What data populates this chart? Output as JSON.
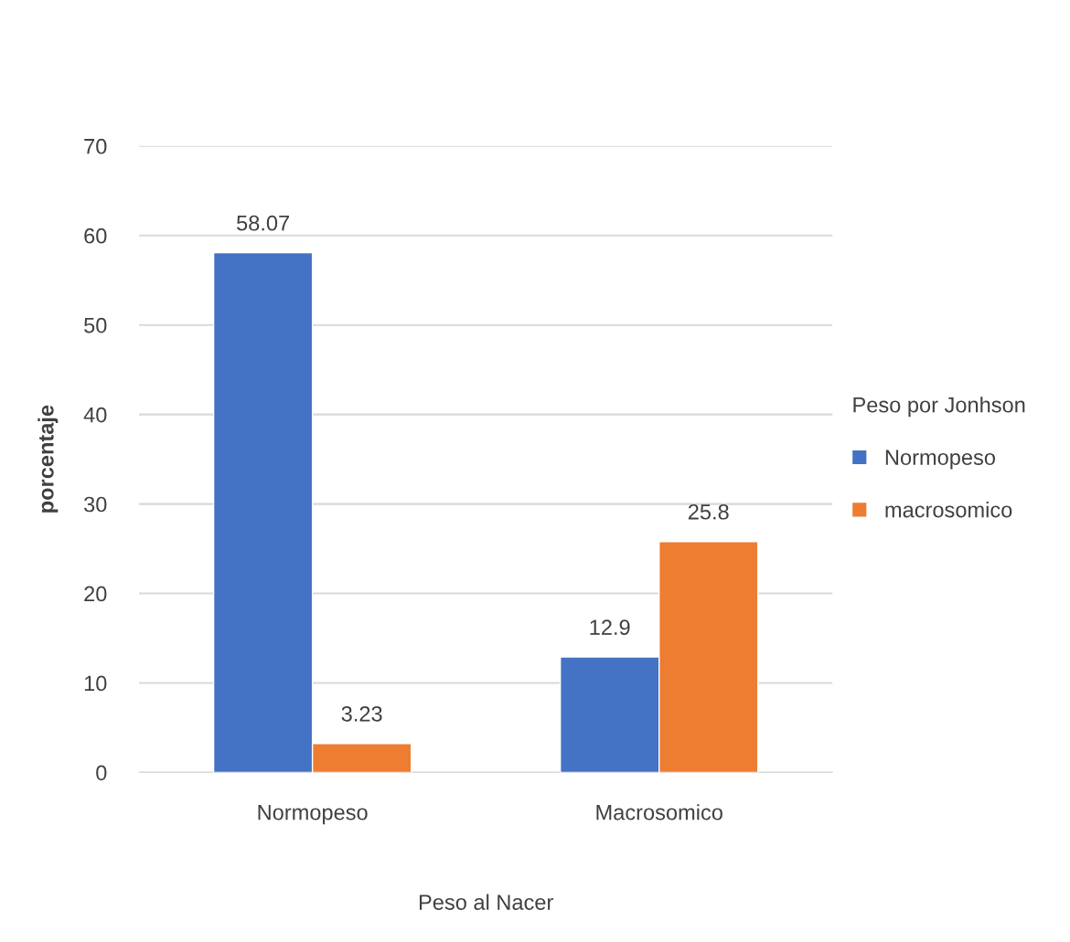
{
  "chart_data": {
    "type": "bar",
    "xlabel": "Peso al Nacer",
    "ylabel": "porcentaje",
    "legend_title": "Peso por Jonhson",
    "legend": "right",
    "categories": [
      "Normopeso",
      "Macrosomico"
    ],
    "series": [
      {
        "name": "Normopeso",
        "color": "#4472c4",
        "values": [
          58.07,
          12.9
        ]
      },
      {
        "name": "macrosomico",
        "color": "#ed7d31",
        "values": [
          3.23,
          25.8
        ]
      }
    ],
    "ylim": [
      0,
      70
    ],
    "yticks": [
      0,
      10,
      20,
      30,
      40,
      50,
      60,
      70
    ],
    "grid": "y",
    "data_labels": true
  }
}
